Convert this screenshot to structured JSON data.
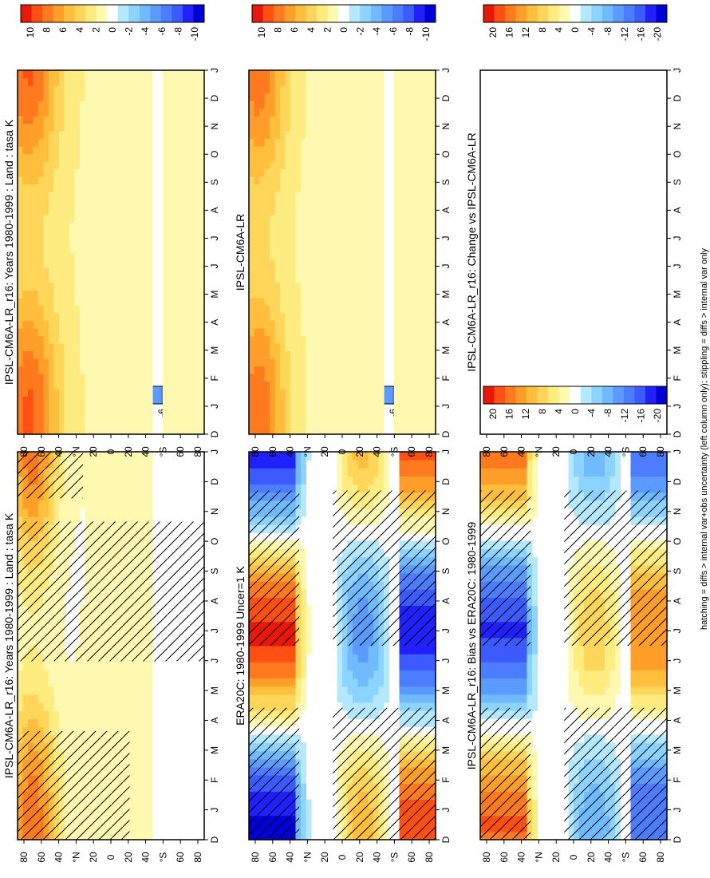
{
  "footnote": "hatching = diffs > internal var+obs uncertainty (left column only); stippling = diffs > internal var only",
  "colors": {
    "scale": [
      "#0000d6",
      "#2121ff",
      "#3c5bff",
      "#4d7dff",
      "#5b9bff",
      "#70baff",
      "#8cd3ff",
      "#b4e8ff",
      "#ffffff",
      "#fff8b0",
      "#ffec80",
      "#ffd65a",
      "#ffbe3c",
      "#ff9e28",
      "#ff7a1e",
      "#ff5014",
      "#e8180a"
    ]
  },
  "chart_data": [
    {
      "id": "top-left",
      "type": "heatmap",
      "title": "IPSL-CM6A-LR_r16: Years 1980-1999 : Land : tasa K",
      "x_ticks": [
        "D",
        "J",
        "F",
        "M",
        "A",
        "M",
        "J",
        "J",
        "A",
        "S",
        "O",
        "N",
        "D",
        "J"
      ],
      "y_ticks": [
        "80",
        "60",
        "40",
        "°N",
        "20",
        "0",
        "20",
        "40",
        "°S",
        "60",
        "80"
      ],
      "colorbar_ticks": [
        "10",
        "8",
        "6",
        "4",
        "2",
        "0",
        "-2",
        "-4",
        "-6",
        "-8",
        "-10"
      ],
      "vrange": [
        -11,
        11
      ],
      "hatching": true,
      "stippling": true
    },
    {
      "id": "top-right",
      "type": "heatmap",
      "title": "IPSL-CM6A-LR_r16: Years 1980-1999 : Land : tasa K",
      "x_ticks": [
        "D",
        "J",
        "F",
        "M",
        "A",
        "M",
        "J",
        "J",
        "A",
        "S",
        "O",
        "N",
        "D",
        "J"
      ],
      "y_ticks": [
        "80",
        "60",
        "40",
        "°N",
        "20",
        "0",
        "20",
        "40",
        "°S",
        "60",
        "80"
      ],
      "colorbar_ticks": [
        "10",
        "8",
        "6",
        "4",
        "2",
        "0",
        "-2",
        "-4",
        "-6",
        "-8",
        "-10"
      ],
      "vrange": [
        -11,
        11
      ],
      "hatching": false,
      "stippling": false
    },
    {
      "id": "mid-left",
      "type": "heatmap",
      "title": "ERA20C: 1980-1999 Uncer=1 K",
      "x_ticks": [
        "D",
        "J",
        "F",
        "M",
        "A",
        "M",
        "J",
        "J",
        "A",
        "S",
        "O",
        "N",
        "D",
        "J"
      ],
      "y_ticks": [
        "80",
        "60",
        "40",
        "°N",
        "20",
        "0",
        "20",
        "40",
        "°S",
        "60",
        "80"
      ],
      "colorbar_ticks": [
        "10",
        "8",
        "6",
        "4",
        "2",
        "0",
        "-2",
        "-4",
        "-6",
        "-8",
        "-10"
      ],
      "vrange": [
        -11,
        11
      ],
      "hatching": true,
      "stippling": true
    },
    {
      "id": "mid-right",
      "type": "heatmap",
      "title": "IPSL-CM6A-LR",
      "x_ticks": [
        "D",
        "J",
        "F",
        "M",
        "A",
        "M",
        "J",
        "J",
        "A",
        "S",
        "O",
        "N",
        "D",
        "J"
      ],
      "y_ticks": [
        "80",
        "60",
        "40",
        "°N",
        "20",
        "0",
        "20",
        "40",
        "°S",
        "60",
        "80"
      ],
      "colorbar_ticks": [
        "10",
        "8",
        "6",
        "4",
        "2",
        "0",
        "-2",
        "-4",
        "-6",
        "-8",
        "-10"
      ],
      "vrange": [
        -11,
        11
      ],
      "hatching": false,
      "stippling": false
    },
    {
      "id": "bot-left",
      "type": "heatmap",
      "title": "IPSL-CM6A-LR_r16: Bias vs ERA20C: 1980-1999",
      "x_ticks": [
        "D",
        "J",
        "F",
        "M",
        "A",
        "M",
        "J",
        "J",
        "A",
        "S",
        "O",
        "N",
        "D",
        "J"
      ],
      "y_ticks": [
        "80",
        "60",
        "40",
        "°N",
        "20",
        "0",
        "20",
        "40",
        "°S",
        "60",
        "80"
      ],
      "colorbar_ticks": [
        "20",
        "16",
        "12",
        "8",
        "4",
        "0",
        "-4",
        "-8",
        "-12",
        "-16",
        "-20"
      ],
      "vrange": [
        -22,
        22
      ],
      "hatching": true,
      "stippling": true
    },
    {
      "id": "bot-right",
      "type": "heatmap",
      "title": "IPSL-CM6A-LR_r16: Change vs IPSL-CM6A-LR",
      "x_ticks": [
        "D",
        "J",
        "F",
        "M",
        "A",
        "M",
        "J",
        "J",
        "A",
        "S",
        "O",
        "N",
        "D",
        "J"
      ],
      "y_ticks": [
        "80",
        "60",
        "40",
        "°N",
        "20",
        "0",
        "20",
        "40",
        "°S",
        "60",
        "80"
      ],
      "colorbar_ticks": [
        "20",
        "16",
        "12",
        "8",
        "4",
        "0",
        "-4",
        "-8",
        "-12",
        "-16",
        "-20"
      ],
      "vrange": [
        -22,
        22
      ],
      "hatching": false,
      "stippling": false
    }
  ]
}
